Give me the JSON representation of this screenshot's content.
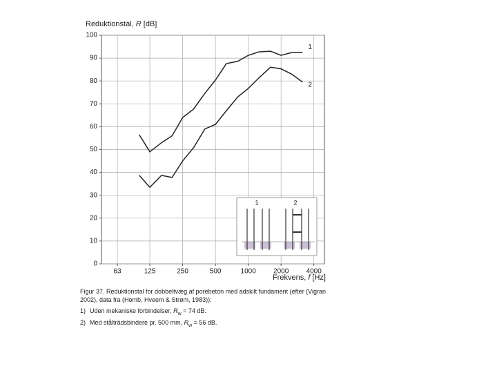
{
  "chart_data": {
    "type": "line",
    "ylabel": {
      "text": "Reduktionstal, ",
      "symbol": "R",
      "unit": " [dB]"
    },
    "xlabel": {
      "text": "Frekvens, ",
      "symbol": "f",
      "unit": " [Hz]"
    },
    "xscale": "log",
    "grid": true,
    "xlim": [
      45,
      5000
    ],
    "xticks": [
      63,
      125,
      250,
      500,
      1000,
      2000,
      4000
    ],
    "ylim": [
      0,
      100
    ],
    "yticks": [
      0,
      10,
      20,
      30,
      40,
      50,
      60,
      70,
      80,
      90,
      100
    ],
    "x": [
      100,
      125,
      160,
      200,
      250,
      315,
      400,
      500,
      630,
      800,
      1000,
      1250,
      1600,
      2000,
      2500,
      3150
    ],
    "series": [
      {
        "name": "1",
        "color": "#222222",
        "values": [
          56.5,
          49,
          53,
          56,
          64,
          67.7,
          74.6,
          80.4,
          87.6,
          88.6,
          91.2,
          92.7,
          93,
          91.2,
          92.4,
          92.4
        ]
      },
      {
        "name": "2",
        "color": "#222222",
        "values": [
          38.7,
          33.5,
          38.7,
          37.8,
          45,
          50.8,
          59,
          61,
          67,
          73,
          76.7,
          81.3,
          86,
          85.3,
          83,
          79.5
        ]
      }
    ],
    "caption": {
      "title": "Figur 37. Reduktionstal for dobbeltvæg af porebeton med adskilt fundament (efter (Vigran 2002), data fra (Homb, Hveem & Strøm, 1983)):",
      "items": [
        {
          "marker": "1)",
          "text": "Uden mekaniske forbindelser, ",
          "symbol": "R",
          "sub": "w",
          "rest": " = 74 dB."
        },
        {
          "marker": "2)",
          "text": "Med stålträdsbindere pr. 500 mm, ",
          "symbol": "R",
          "sub": "w",
          "rest": " = 56 dB."
        }
      ]
    }
  }
}
